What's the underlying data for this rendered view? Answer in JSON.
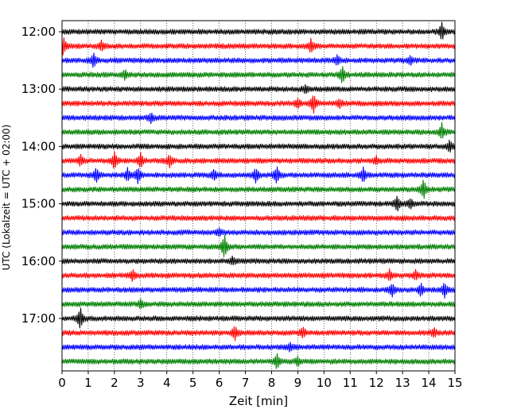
{
  "chart_data": {
    "type": "line",
    "title": "",
    "xlabel": "Zeit  [min]",
    "ylabel": "UTC (Lokalzeit = UTC + 02:00)",
    "xlim": [
      0,
      15
    ],
    "x_ticks": [
      "0",
      "1",
      "2",
      "3",
      "4",
      "5",
      "6",
      "7",
      "8",
      "9",
      "10",
      "11",
      "12",
      "13",
      "14",
      "15"
    ],
    "y_ticks": [
      {
        "label": "12:00",
        "trace": 0
      },
      {
        "label": "13:00",
        "trace": 4
      },
      {
        "label": "14:00",
        "trace": 8
      },
      {
        "label": "15:00",
        "trace": 12
      },
      {
        "label": "16:00",
        "trace": 16
      },
      {
        "label": "17:00",
        "trace": 20
      }
    ],
    "grid": "vertical dotted lines at every minute",
    "trace_minutes": 15,
    "color_cycle": [
      "#000000",
      "#ff0000",
      "#0000ff",
      "#008000"
    ],
    "traces": [
      {
        "start": "12:00",
        "color": "#000000",
        "events": [
          {
            "t": 14.5,
            "amp": 2.2
          }
        ]
      },
      {
        "start": "12:15",
        "color": "#ff0000",
        "events": [
          {
            "t": 0.05,
            "amp": 2.4
          },
          {
            "t": 1.5,
            "amp": 1.2
          },
          {
            "t": 9.5,
            "amp": 1.6
          }
        ]
      },
      {
        "start": "12:30",
        "color": "#0000ff",
        "events": [
          {
            "t": 1.2,
            "amp": 2.0
          },
          {
            "t": 10.5,
            "amp": 1.2
          },
          {
            "t": 13.3,
            "amp": 1.0
          }
        ]
      },
      {
        "start": "12:45",
        "color": "#008000",
        "events": [
          {
            "t": 2.4,
            "amp": 1.2
          },
          {
            "t": 10.7,
            "amp": 2.2
          }
        ]
      },
      {
        "start": "13:00",
        "color": "#000000",
        "events": [
          {
            "t": 9.3,
            "amp": 1.0
          }
        ]
      },
      {
        "start": "13:15",
        "color": "#ff0000",
        "events": [
          {
            "t": 9.0,
            "amp": 1.0
          },
          {
            "t": 9.6,
            "amp": 2.4
          },
          {
            "t": 10.6,
            "amp": 1.0
          }
        ]
      },
      {
        "start": "13:30",
        "color": "#0000ff",
        "events": [
          {
            "t": 3.4,
            "amp": 1.2
          }
        ]
      },
      {
        "start": "13:45",
        "color": "#008000",
        "events": [
          {
            "t": 14.5,
            "amp": 2.0
          }
        ]
      },
      {
        "start": "14:00",
        "color": "#000000",
        "events": [
          {
            "t": 14.8,
            "amp": 1.4
          }
        ]
      },
      {
        "start": "14:15",
        "color": "#ff0000",
        "events": [
          {
            "t": 0.7,
            "amp": 1.4
          },
          {
            "t": 2.0,
            "amp": 2.2
          },
          {
            "t": 3.0,
            "amp": 2.0
          },
          {
            "t": 4.1,
            "amp": 1.6
          },
          {
            "t": 12.0,
            "amp": 0.9
          }
        ]
      },
      {
        "start": "14:30",
        "color": "#0000ff",
        "events": [
          {
            "t": 1.3,
            "amp": 1.8
          },
          {
            "t": 2.5,
            "amp": 1.6
          },
          {
            "t": 2.9,
            "amp": 2.0
          },
          {
            "t": 5.8,
            "amp": 1.4
          },
          {
            "t": 7.4,
            "amp": 1.8
          },
          {
            "t": 8.2,
            "amp": 2.2
          },
          {
            "t": 11.5,
            "amp": 1.8
          }
        ]
      },
      {
        "start": "14:45",
        "color": "#008000",
        "events": [
          {
            "t": 13.8,
            "amp": 2.6
          }
        ]
      },
      {
        "start": "15:00",
        "color": "#000000",
        "events": [
          {
            "t": 12.8,
            "amp": 2.0
          },
          {
            "t": 13.3,
            "amp": 1.2
          }
        ]
      },
      {
        "start": "15:15",
        "color": "#ff0000",
        "events": []
      },
      {
        "start": "15:30",
        "color": "#0000ff",
        "events": [
          {
            "t": 6.0,
            "amp": 0.9
          }
        ]
      },
      {
        "start": "15:45",
        "color": "#008000",
        "events": [
          {
            "t": 6.2,
            "amp": 3.2
          }
        ]
      },
      {
        "start": "16:00",
        "color": "#000000",
        "events": [
          {
            "t": 6.5,
            "amp": 0.9
          }
        ]
      },
      {
        "start": "16:15",
        "color": "#ff0000",
        "events": [
          {
            "t": 2.7,
            "amp": 1.4
          },
          {
            "t": 12.5,
            "amp": 1.2
          },
          {
            "t": 13.5,
            "amp": 1.2
          }
        ]
      },
      {
        "start": "16:30",
        "color": "#0000ff",
        "events": [
          {
            "t": 12.6,
            "amp": 1.6
          },
          {
            "t": 13.7,
            "amp": 1.6
          },
          {
            "t": 14.6,
            "amp": 1.8
          }
        ]
      },
      {
        "start": "16:45",
        "color": "#008000",
        "events": [
          {
            "t": 3.0,
            "amp": 1.0
          }
        ]
      },
      {
        "start": "17:00",
        "color": "#000000",
        "events": [
          {
            "t": 0.7,
            "amp": 2.8
          }
        ]
      },
      {
        "start": "17:15",
        "color": "#ff0000",
        "events": [
          {
            "t": 6.6,
            "amp": 1.8
          },
          {
            "t": 9.2,
            "amp": 1.4
          },
          {
            "t": 14.2,
            "amp": 1.0
          }
        ]
      },
      {
        "start": "17:30",
        "color": "#0000ff",
        "events": [
          {
            "t": 8.7,
            "amp": 1.0
          }
        ]
      },
      {
        "start": "17:45",
        "color": "#008000",
        "events": [
          {
            "t": 8.2,
            "amp": 2.0
          },
          {
            "t": 9.0,
            "amp": 1.0
          }
        ]
      }
    ]
  }
}
